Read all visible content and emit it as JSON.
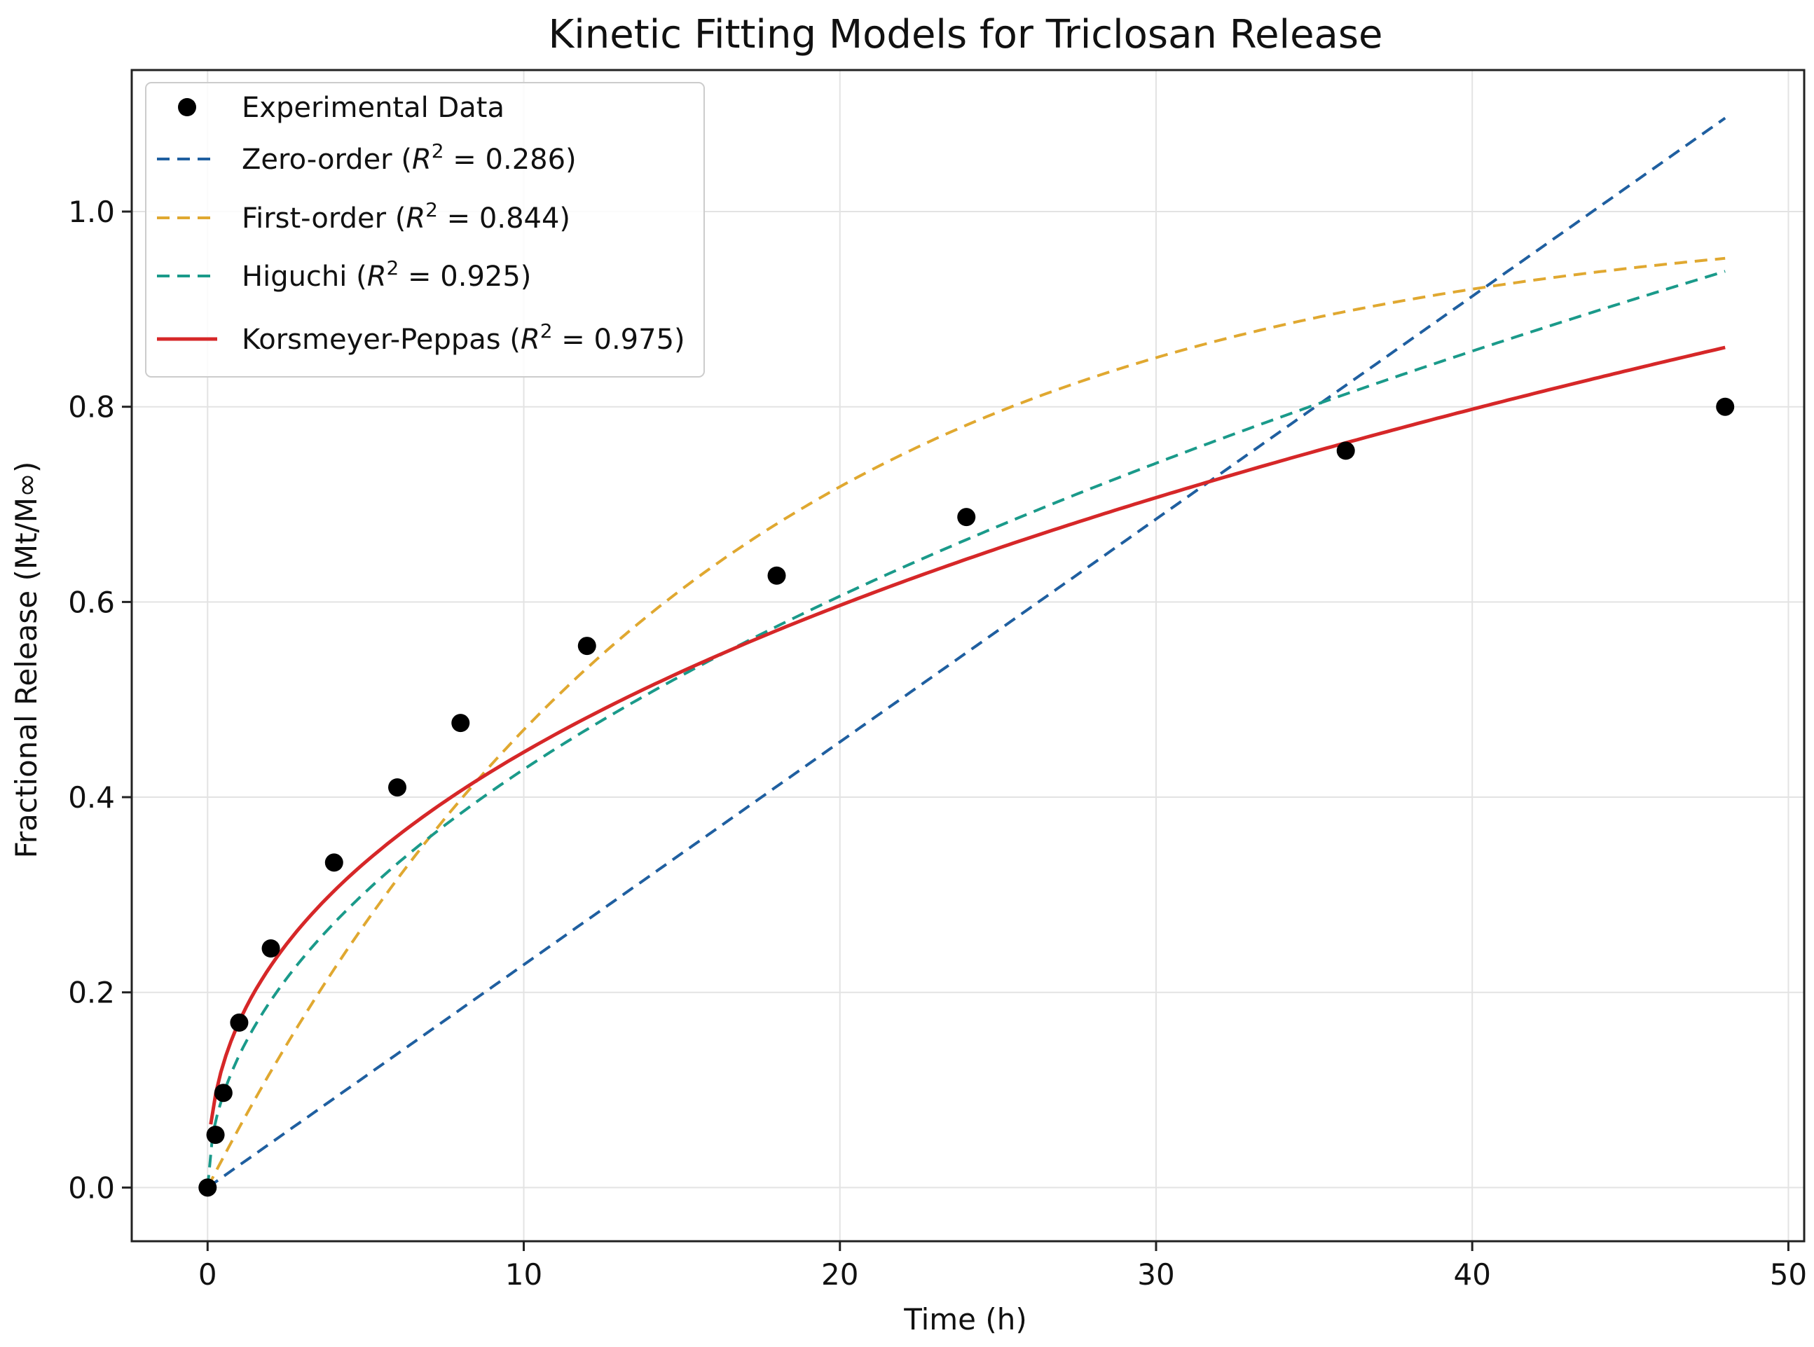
{
  "chart_data": {
    "type": "line",
    "title": "Kinetic Fitting Models for Triclosan Release",
    "xlabel": "Time (h)",
    "ylabel": "Fractional Release (Mt/M∞)",
    "xlim": [
      -2.4,
      50.5
    ],
    "ylim": [
      -0.055,
      1.145
    ],
    "xticks": [
      0,
      10,
      20,
      30,
      40,
      50
    ],
    "yticks": [
      0.0,
      0.2,
      0.4,
      0.6,
      0.8,
      1.0
    ],
    "grid": true,
    "legend_position": "top-left",
    "experimental": {
      "name": "Experimental Data",
      "color": "#000000",
      "x": [
        0,
        0.25,
        0.5,
        1,
        2,
        4,
        6,
        8,
        12,
        18,
        24,
        36,
        48
      ],
      "y": [
        0.0,
        0.054,
        0.097,
        0.169,
        0.245,
        0.333,
        0.41,
        0.476,
        0.555,
        0.627,
        0.687,
        0.755,
        0.8
      ]
    },
    "series": [
      {
        "name": "Zero-order (R² = 0.286)",
        "label_main": "Zero-order (",
        "label_suffix": " = 0.286)",
        "model": "zero",
        "k": 0.02283,
        "color": "#1f5fa0",
        "dashed": true
      },
      {
        "name": "First-order (R² = 0.844)",
        "label_main": "First-order (",
        "label_suffix": " = 0.844)",
        "model": "first",
        "k": 0.0633,
        "color": "#e0a830",
        "dashed": true
      },
      {
        "name": "Higuchi (R² = 0.925)",
        "label_main": "Higuchi (",
        "label_suffix": " = 0.925)",
        "model": "higuchi",
        "k": 0.1355,
        "color": "#1a9a8a",
        "dashed": true
      },
      {
        "name": "Korsmeyer-Peppas (R² = 0.975)",
        "label_main": "Korsmeyer-Peppas (",
        "label_suffix": " = 0.975)",
        "model": "peppas",
        "k": 0.17,
        "n": 0.419,
        "color": "#d62728",
        "dashed": false
      }
    ],
    "r_symbol": "R",
    "r_exponent": "2"
  }
}
